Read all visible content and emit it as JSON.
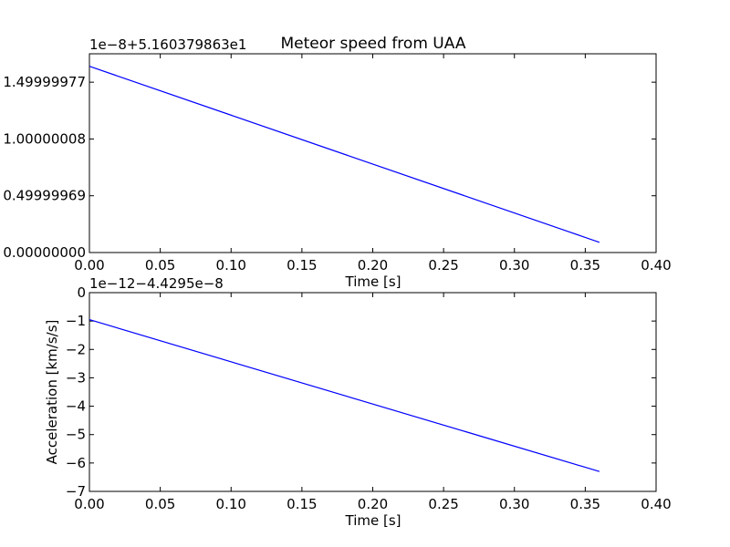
{
  "chart_data": [
    {
      "type": "line",
      "title": "Meteor speed from UAA",
      "xlabel": "Time [s]",
      "ylabel": "",
      "offset_label": "1e−8+5.160379863e1",
      "xlim": [
        0.0,
        0.4
      ],
      "ylim": [
        0.0,
        1.75
      ],
      "x_ticks": [
        0.0,
        0.05,
        0.1,
        0.15,
        0.2,
        0.25,
        0.3,
        0.35,
        0.4
      ],
      "x_tick_labels": [
        "0.00",
        "0.05",
        "0.10",
        "0.15",
        "0.20",
        "0.25",
        "0.30",
        "0.35",
        "0.40"
      ],
      "y_ticks": [
        0.0,
        0.49999969,
        1.00000008,
        1.49999977
      ],
      "y_tick_labels": [
        "0.00000000",
        "0.49999969",
        "1.00000008",
        "1.49999977"
      ],
      "grid": false,
      "series": [
        {
          "x": [
            0.0,
            0.36
          ],
          "y": [
            1.64,
            0.09
          ]
        }
      ],
      "color": "#0000ff"
    },
    {
      "type": "line",
      "title": "",
      "xlabel": "Time [s]",
      "ylabel": "Acceleration [km/s/s]",
      "offset_label": "1e−12−4.4295e−8",
      "xlim": [
        0.0,
        0.4
      ],
      "ylim": [
        -7,
        0
      ],
      "x_ticks": [
        0.0,
        0.05,
        0.1,
        0.15,
        0.2,
        0.25,
        0.3,
        0.35,
        0.4
      ],
      "x_tick_labels": [
        "0.00",
        "0.05",
        "0.10",
        "0.15",
        "0.20",
        "0.25",
        "0.30",
        "0.35",
        "0.40"
      ],
      "y_ticks": [
        0,
        -1,
        -2,
        -3,
        -4,
        -5,
        -6,
        -7
      ],
      "y_tick_labels": [
        "0",
        "−1",
        "−2",
        "−3",
        "−4",
        "−5",
        "−6",
        "−7"
      ],
      "grid": false,
      "series": [
        {
          "x": [
            0.0,
            0.36
          ],
          "y": [
            -0.95,
            -6.3
          ]
        }
      ],
      "color": "#0000ff"
    }
  ]
}
